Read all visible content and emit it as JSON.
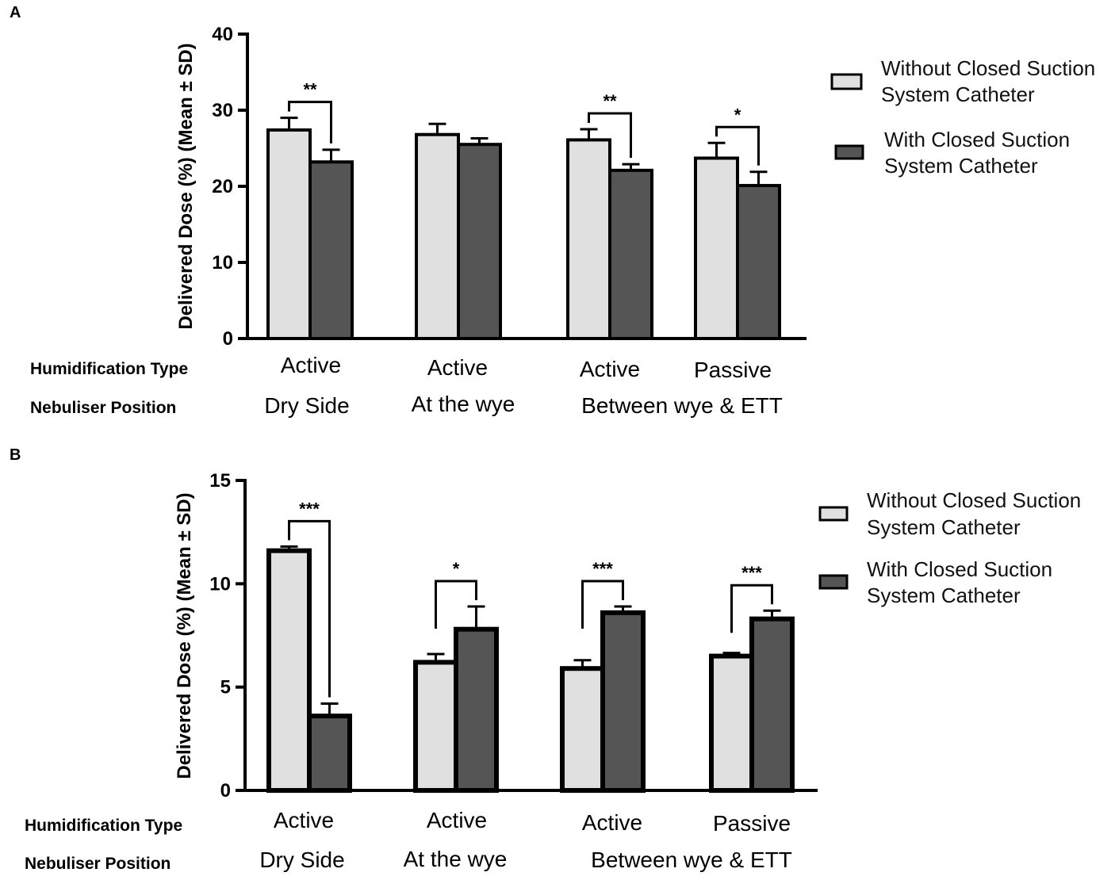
{
  "colors": {
    "series_light": "#e0e0e0",
    "series_dark": "#555555",
    "axis": "#000000"
  },
  "chart_data": [
    {
      "panel": "A",
      "type": "bar",
      "ylabel": "Delivered Dose (%) (Mean ± SD)",
      "ylim": [
        0,
        40
      ],
      "yticks": [
        0,
        10,
        20,
        30,
        40
      ],
      "row_labels": [
        "Humidification Type",
        "Nebuliser Position"
      ],
      "humidification": [
        "Active",
        "Active",
        "Active",
        "Passive"
      ],
      "positions": [
        "Dry Side",
        "At the wye",
        "Between wye & ETT"
      ],
      "series": [
        {
          "name": "Without Closed Suction System Catheter",
          "legend_lines": [
            "Without Closed Suction",
            "System Catheter"
          ],
          "values": [
            27.4,
            26.8,
            26.1,
            23.7
          ],
          "sd": [
            1.6,
            1.4,
            1.4,
            2.0
          ]
        },
        {
          "name": "With Closed Suction System Catheter",
          "legend_lines": [
            "With Closed Suction",
            "System Catheter"
          ],
          "values": [
            23.2,
            25.5,
            22.1,
            20.1
          ],
          "sd": [
            1.6,
            0.8,
            0.8,
            1.8
          ]
        }
      ],
      "significance": [
        "**",
        "",
        "**",
        "*"
      ]
    },
    {
      "panel": "B",
      "type": "bar",
      "ylabel": "Delivered Dose (%) (Mean ± SD)",
      "ylim": [
        0,
        15
      ],
      "yticks": [
        0,
        5,
        10,
        15
      ],
      "row_labels": [
        "Humidification Type",
        "Nebuliser Position"
      ],
      "humidification": [
        "Active",
        "Active",
        "Active",
        "Passive"
      ],
      "positions": [
        "Dry Side",
        "At the wye",
        "Between wye & ETT"
      ],
      "series": [
        {
          "name": "Without Closed Suction System Catheter",
          "legend_lines": [
            "Without Closed Suction",
            "System Catheter"
          ],
          "values": [
            11.6,
            6.2,
            5.9,
            6.5
          ],
          "sd": [
            0.2,
            0.4,
            0.4,
            0.15
          ]
        },
        {
          "name": "With Closed Suction System Catheter",
          "legend_lines": [
            "With Closed Suction",
            "System Catheter"
          ],
          "values": [
            3.6,
            7.8,
            8.6,
            8.3
          ],
          "sd": [
            0.6,
            1.1,
            0.3,
            0.4
          ]
        }
      ],
      "significance": [
        "***",
        "*",
        "***",
        "***"
      ]
    }
  ]
}
